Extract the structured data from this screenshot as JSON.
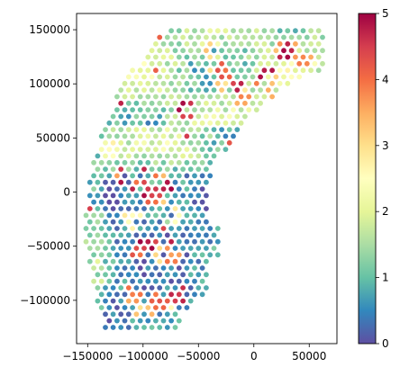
{
  "chart_data": {
    "type": "scatter",
    "title": "",
    "xlabel": "",
    "ylabel": "",
    "xlim": [
      -160000,
      75000
    ],
    "ylim": [
      -140000,
      165000
    ],
    "x_ticks": [
      -150000,
      -100000,
      -50000,
      0,
      50000
    ],
    "y_ticks": [
      -100000,
      -50000,
      0,
      50000,
      100000,
      150000
    ],
    "x_tick_labels": [
      "−150000",
      "−100000",
      "−50000",
      "0",
      "50000"
    ],
    "y_tick_labels": [
      "−100000",
      "−50000",
      "0",
      "50000",
      "100000",
      "150000"
    ],
    "grid": false,
    "colormap": "Spectral_r",
    "colorbar": {
      "vmin": 0,
      "vmax": 5,
      "ticks": [
        0,
        1,
        2,
        3,
        4,
        5
      ],
      "tick_labels": [
        "0",
        "1",
        "2",
        "3",
        "4",
        "5"
      ],
      "colors": [
        "#5e4fa2",
        "#3288bd",
        "#66c2a5",
        "#abdda4",
        "#e6f598",
        "#ffffbf",
        "#fee08b",
        "#fdae61",
        "#f46d43",
        "#d53e4f",
        "#9e0142"
      ]
    },
    "point_grid": {
      "spacing": 7000,
      "shape": "wedge-shaped band of points on a hex-like grid, spanning x ≈ −150000…62000 and y ≈ −122000…152000",
      "value_regions": [
        {
          "description": "south and west core",
          "value": 0.6
        },
        {
          "description": "western edge band",
          "value": 1.3
        },
        {
          "description": "north-western arm",
          "value": 1.7
        },
        {
          "description": "north-eastern arm",
          "value": 1.5
        }
      ],
      "hotspots": [
        {
          "x": -115000,
          "y": 10000,
          "value": 5
        },
        {
          "x": -100000,
          "y": 5000,
          "value": 5
        },
        {
          "x": -80000,
          "y": 5000,
          "value": 5
        },
        {
          "x": -95000,
          "y": 25000,
          "value": 5
        },
        {
          "x": -90000,
          "y": -5000,
          "value": 4.5
        },
        {
          "x": -95000,
          "y": -50000,
          "value": 5
        },
        {
          "x": -80000,
          "y": -40000,
          "value": 5
        },
        {
          "x": -75000,
          "y": -60000,
          "value": 4
        },
        {
          "x": -105000,
          "y": -55000,
          "value": 4.5
        },
        {
          "x": -70000,
          "y": -95000,
          "value": 5
        },
        {
          "x": -85000,
          "y": -100000,
          "value": 4.5
        },
        {
          "x": -110000,
          "y": -95000,
          "value": 4
        },
        {
          "x": -100000,
          "y": -110000,
          "value": 3.5
        },
        {
          "x": -60000,
          "y": 75000,
          "value": 5
        },
        {
          "x": -20000,
          "y": 100000,
          "value": 5
        },
        {
          "x": -30000,
          "y": 110000,
          "value": 4.5
        },
        {
          "x": -10000,
          "y": 85000,
          "value": 4
        },
        {
          "x": 10000,
          "y": 110000,
          "value": 5
        },
        {
          "x": 30000,
          "y": 130000,
          "value": 5
        },
        {
          "x": 45000,
          "y": 120000,
          "value": 4
        },
        {
          "x": 20000,
          "y": 90000,
          "value": 3.5
        },
        {
          "x": -40000,
          "y": 130000,
          "value": 3.5
        },
        {
          "x": -110000,
          "y": -25000,
          "value": 3
        },
        {
          "x": -70000,
          "y": -20000,
          "value": 3
        },
        {
          "x": -130000,
          "y": 40000,
          "value": 2.8
        }
      ]
    }
  }
}
